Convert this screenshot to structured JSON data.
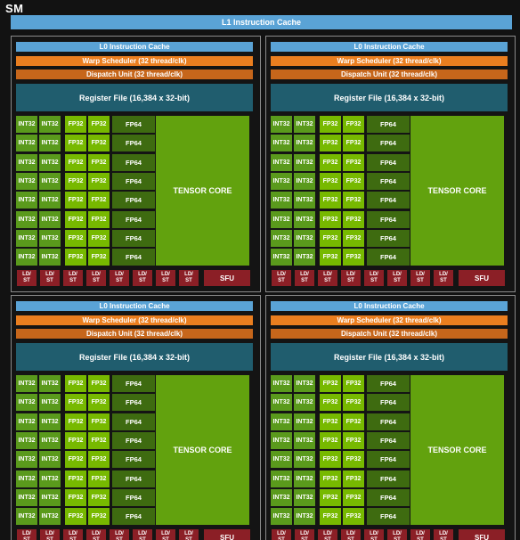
{
  "sm_title": "SM",
  "l1_cache": "L1 Instruction Cache",
  "partition": {
    "l0_cache": "L0 Instruction Cache",
    "warp_scheduler": "Warp Scheduler (32 thread/clk)",
    "dispatch_unit": "Dispatch Unit (32 thread/clk)",
    "register_file": "Register File (16,384 x 32-bit)",
    "int32": "INT32",
    "fp32": "FP32",
    "fp64": "FP64",
    "tensor_core": "TENSOR CORE",
    "ldst": "LD/ ST",
    "sfu": "SFU"
  },
  "partitions_count": 4,
  "core_rows": 8,
  "ldst_units": 8,
  "colors": {
    "background": "#121212",
    "l1_cache": "#5aa3d6",
    "l0_cache": "#5aa3d6",
    "warp_scheduler": "#ea7e1f",
    "dispatch_unit": "#c6661b",
    "register_file": "#205d6e",
    "int32": "#5a9a1c",
    "fp32": "#77b900",
    "fp64": "#3e6b10",
    "tensor_core": "#62a20e",
    "ldst": "#8b1f26",
    "sfu": "#8b1f26"
  }
}
